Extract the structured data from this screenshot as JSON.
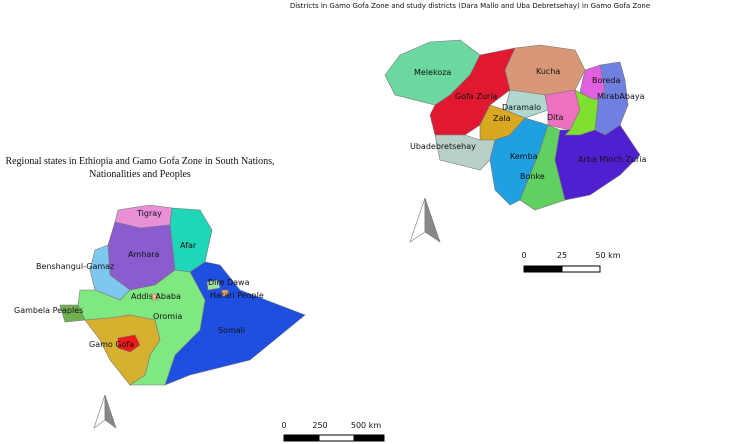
{
  "left_map": {
    "title": [
      "Regional states in Ethiopia and Gamo Gofa Zone in South Nations,",
      "Nationalities and Peoples"
    ],
    "regions": [
      "Tigray",
      "Afar",
      "Amhara",
      "Benshangul-Gamaz",
      "Dire Dawa",
      "Harari People",
      "Addis Ababa",
      "Oromia",
      "Gambela Peaples",
      "Somali",
      "Gamo Gofa"
    ],
    "scale_bar": [
      "0",
      "250",
      "500 km"
    ]
  },
  "right_map": {
    "title": "Districts in Gamo Gofa Zone and study districts (Dara Mallo and Uba Debretsehay) in Gamo Gofa Zone",
    "districts": [
      "Melekoza",
      "Kucha",
      "Boreda",
      "Gofa Zuria",
      "MirabAbaya",
      "Daramalo",
      "Zala",
      "Dita",
      "Ubadebretsehay",
      "Kemba",
      "Arba Minch Zuria",
      "Bonke"
    ],
    "scale_bar": [
      "0",
      "25",
      "50 km"
    ]
  }
}
